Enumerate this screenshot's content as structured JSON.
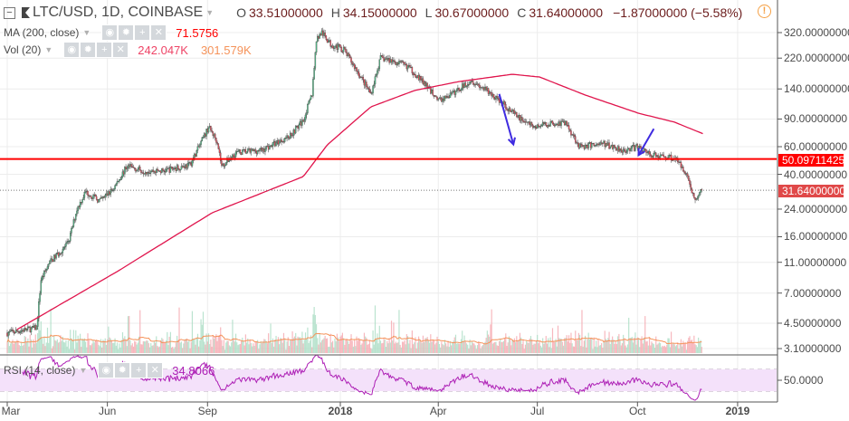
{
  "header": {
    "symbol": "LTC/USD, 1D, COINBASE",
    "open_label": "O",
    "open": "33.51000000",
    "high_label": "H",
    "high": "34.15000000",
    "low_label": "L",
    "low": "30.67000000",
    "close_label": "C",
    "close": "31.64000000",
    "change": "−1.87000000 (−5.58%)"
  },
  "indicators": {
    "ma": {
      "label": "MA (200, close)",
      "value": "71.5756"
    },
    "vol": {
      "label": "Vol (20)",
      "value": "242.047K",
      "ma_value": "301.579K"
    },
    "rsi": {
      "label": "RSI (14, close)",
      "value": "34.8066"
    }
  },
  "colors": {
    "up": "#53b987",
    "down": "#eb4d5c",
    "ma": "#e0144c",
    "hline": "#ff0000",
    "rsi": "#ad1fb5",
    "arrow": "#3f2be0",
    "vol_ma": "#f5935a",
    "warning": "#f5a045"
  },
  "price_labels": {
    "hline": "50.09711425",
    "last": "31.64000000"
  },
  "chart_data": {
    "type": "candlestick",
    "scale": "log",
    "ylim": [
      3.1,
      320
    ],
    "y_ticks": [
      "320.00000000",
      "220.00000000",
      "140.00000000",
      "90.00000000",
      "60.00000000",
      "40.00000000",
      "24.00000000",
      "16.00000000",
      "11.00000000",
      "7.00000000",
      "4.50000000",
      "3.10000000"
    ],
    "y_tick_values": [
      320,
      220,
      140,
      90,
      60,
      40,
      24,
      16,
      11,
      7,
      4.5,
      3.1
    ],
    "x_ticks": [
      {
        "label": "Mar",
        "date": "2017-03-01"
      },
      {
        "label": "Jun",
        "date": "2017-06-01"
      },
      {
        "label": "Sep",
        "date": "2017-09-01"
      },
      {
        "label": "2018",
        "date": "2018-01-01"
      },
      {
        "label": "Apr",
        "date": "2018-04-01"
      },
      {
        "label": "Jul",
        "date": "2018-07-01"
      },
      {
        "label": "Oct",
        "date": "2018-10-01"
      },
      {
        "label": "2019",
        "date": "2019-01-01"
      }
    ],
    "close_anchors": [
      [
        "2017-03-01",
        3.9
      ],
      [
        "2017-03-28",
        4.2
      ],
      [
        "2017-04-01",
        8.5
      ],
      [
        "2017-04-09",
        11
      ],
      [
        "2017-04-26",
        14.5
      ],
      [
        "2017-05-04",
        24
      ],
      [
        "2017-05-12",
        31
      ],
      [
        "2017-05-25",
        27
      ],
      [
        "2017-06-06",
        32
      ],
      [
        "2017-06-19",
        45
      ],
      [
        "2017-07-05",
        42
      ],
      [
        "2017-07-22",
        42
      ],
      [
        "2017-08-16",
        46
      ],
      [
        "2017-09-02",
        80
      ],
      [
        "2017-09-10",
        65
      ],
      [
        "2017-09-14",
        45
      ],
      [
        "2017-09-27",
        55
      ],
      [
        "2017-10-21",
        57
      ],
      [
        "2017-11-15",
        70
      ],
      [
        "2017-11-28",
        88
      ],
      [
        "2017-12-06",
        130
      ],
      [
        "2017-12-10",
        290
      ],
      [
        "2017-12-15",
        320
      ],
      [
        "2017-12-23",
        270
      ],
      [
        "2018-01-04",
        250
      ],
      [
        "2018-01-17",
        180
      ],
      [
        "2018-01-29",
        130
      ],
      [
        "2018-02-07",
        220
      ],
      [
        "2018-02-19",
        210
      ],
      [
        "2018-03-04",
        195
      ],
      [
        "2018-03-16",
        160
      ],
      [
        "2018-04-02",
        118
      ],
      [
        "2018-04-14",
        130
      ],
      [
        "2018-05-01",
        160
      ],
      [
        "2018-05-13",
        140
      ],
      [
        "2018-05-26",
        120
      ],
      [
        "2018-06-11",
        95
      ],
      [
        "2018-06-28",
        80
      ],
      [
        "2018-07-15",
        85
      ],
      [
        "2018-07-27",
        85
      ],
      [
        "2018-08-09",
        60
      ],
      [
        "2018-08-29",
        63
      ],
      [
        "2018-09-19",
        57
      ],
      [
        "2018-10-02",
        60
      ],
      [
        "2018-10-14",
        53
      ],
      [
        "2018-11-04",
        51
      ],
      [
        "2018-11-14",
        42
      ],
      [
        "2018-11-23",
        27
      ],
      [
        "2018-11-29",
        31.64
      ]
    ],
    "ma200": [
      [
        "2017-03-10",
        4.1
      ],
      [
        "2017-06-10",
        9.6
      ],
      [
        "2017-09-05",
        22.7
      ],
      [
        "2017-11-28",
        38.7
      ],
      [
        "2017-12-20",
        61.6
      ],
      [
        "2018-01-29",
        107.6
      ],
      [
        "2018-03-10",
        136.7
      ],
      [
        "2018-04-20",
        156
      ],
      [
        "2018-06-08",
        173.6
      ],
      [
        "2018-07-03",
        166.8
      ],
      [
        "2018-08-14",
        128
      ],
      [
        "2018-10-02",
        98
      ],
      [
        "2018-11-04",
        86
      ],
      [
        "2018-12-01",
        72.2
      ]
    ],
    "horizontal_line": 50.09711425,
    "last_price": 31.64,
    "arrows": [
      {
        "from": [
          "2018-05-27",
          130
        ],
        "to": [
          "2018-06-09",
          62
        ]
      },
      {
        "from": [
          "2018-10-16",
          78
        ],
        "to": [
          "2018-10-02",
          53
        ]
      }
    ],
    "rsi": {
      "band": [
        30,
        70
      ],
      "tick_label": "50.0000",
      "tick": 50
    }
  }
}
